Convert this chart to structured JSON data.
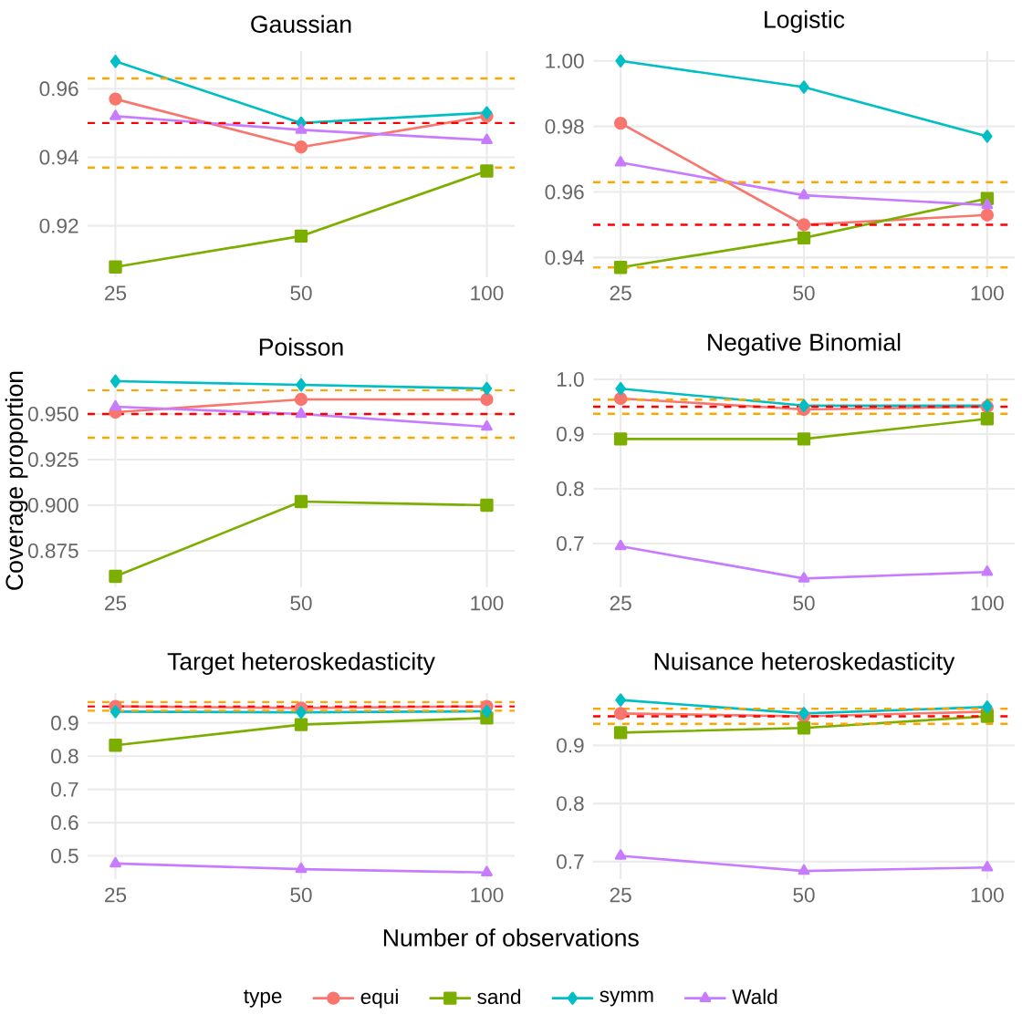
{
  "chart_data": [
    {
      "type": "line",
      "title": "Gaussian",
      "categories": [
        "25",
        "50",
        "100"
      ],
      "ylim": [
        0.905,
        0.971
      ],
      "yticks": [
        0.92,
        0.94,
        0.96
      ],
      "grid": true,
      "series": [
        {
          "color": "#f8766d",
          "marker": "circle",
          "values": [
            0.957,
            0.943,
            0.952
          ]
        },
        {
          "color": "#7cae00",
          "marker": "square",
          "values": [
            0.908,
            0.917,
            0.936
          ]
        },
        {
          "color": "#00bfc4",
          "marker": "diamond",
          "values": [
            0.968,
            0.95,
            0.953
          ]
        },
        {
          "color": "#c77cff",
          "marker": "triangle",
          "values": [
            0.952,
            0.948,
            0.945
          ]
        }
      ],
      "ref_lines": [
        {
          "axis": "y",
          "value": 0.95,
          "color": "#ff0000",
          "line_style": "dashed"
        },
        {
          "axis": "y",
          "value": 0.937,
          "color": "#ffa500",
          "line_style": "dashed"
        },
        {
          "axis": "y",
          "value": 0.963,
          "color": "#ffa500",
          "line_style": "dashed"
        }
      ]
    },
    {
      "type": "line",
      "title": "Logistic",
      "categories": [
        "25",
        "50",
        "100"
      ],
      "ylim": [
        0.934,
        1.003
      ],
      "yticks": [
        {
          "value": 0.94,
          "label": "0.94"
        },
        {
          "value": 0.96,
          "label": "0.96"
        },
        {
          "value": 0.98,
          "label": "0.98"
        },
        {
          "value": 1.0,
          "label": "1.00"
        }
      ],
      "grid": true,
      "series": [
        {
          "color": "#f8766d",
          "marker": "circle",
          "values": [
            0.981,
            0.95,
            0.953
          ]
        },
        {
          "color": "#7cae00",
          "marker": "square",
          "values": [
            0.937,
            0.946,
            0.958
          ]
        },
        {
          "color": "#00bfc4",
          "marker": "diamond",
          "values": [
            1.0,
            0.992,
            0.977
          ]
        },
        {
          "color": "#c77cff",
          "marker": "triangle",
          "values": [
            0.969,
            0.959,
            0.956
          ]
        }
      ],
      "ref_lines": [
        {
          "axis": "y",
          "value": 0.95,
          "color": "#ff0000",
          "line_style": "dashed"
        },
        {
          "axis": "y",
          "value": 0.937,
          "color": "#ffa500",
          "line_style": "dashed"
        },
        {
          "axis": "y",
          "value": 0.963,
          "color": "#ffa500",
          "line_style": "dashed"
        }
      ]
    },
    {
      "type": "line",
      "title": "Poisson",
      "ylabel": "Coverage proportion",
      "categories": [
        "25",
        "50",
        "100"
      ],
      "ylim": [
        0.855,
        0.972
      ],
      "yticks": [
        {
          "value": 0.875,
          "label": "0.875"
        },
        {
          "value": 0.9,
          "label": "0.900"
        },
        {
          "value": 0.925,
          "label": "0.925"
        },
        {
          "value": 0.95,
          "label": "0.950"
        }
      ],
      "grid": true,
      "series": [
        {
          "color": "#f8766d",
          "marker": "circle",
          "values": [
            0.951,
            0.958,
            0.958
          ]
        },
        {
          "color": "#7cae00",
          "marker": "square",
          "values": [
            0.861,
            0.902,
            0.9
          ]
        },
        {
          "color": "#00bfc4",
          "marker": "diamond",
          "values": [
            0.968,
            0.966,
            0.964
          ]
        },
        {
          "color": "#c77cff",
          "marker": "triangle",
          "values": [
            0.954,
            0.95,
            0.943
          ]
        }
      ],
      "ref_lines": [
        {
          "axis": "y",
          "value": 0.95,
          "color": "#ff0000",
          "line_style": "dashed"
        },
        {
          "axis": "y",
          "value": 0.937,
          "color": "#ffa500",
          "line_style": "dashed"
        },
        {
          "axis": "y",
          "value": 0.963,
          "color": "#ffa500",
          "line_style": "dashed"
        }
      ]
    },
    {
      "type": "line",
      "title": "Negative Binomial",
      "categories": [
        "25",
        "50",
        "100"
      ],
      "ylim": [
        0.62,
        1.01
      ],
      "yticks": [
        0.7,
        0.8,
        0.9,
        {
          "value": 1.0,
          "label": "1.0"
        }
      ],
      "grid": true,
      "series": [
        {
          "color": "#f8766d",
          "marker": "circle",
          "values": [
            0.965,
            0.945,
            0.95
          ]
        },
        {
          "color": "#7cae00",
          "marker": "square",
          "values": [
            0.891,
            0.891,
            0.928
          ]
        },
        {
          "color": "#00bfc4",
          "marker": "diamond",
          "values": [
            0.983,
            0.952,
            0.952
          ]
        },
        {
          "color": "#c77cff",
          "marker": "triangle",
          "values": [
            0.695,
            0.636,
            0.648
          ]
        }
      ],
      "ref_lines": [
        {
          "axis": "y",
          "value": 0.95,
          "color": "#ff0000",
          "line_style": "dashed"
        },
        {
          "axis": "y",
          "value": 0.937,
          "color": "#ffa500",
          "line_style": "dashed"
        },
        {
          "axis": "y",
          "value": 0.963,
          "color": "#ffa500",
          "line_style": "dashed"
        }
      ]
    },
    {
      "type": "line",
      "title": "Target heteroskedasticity",
      "xlabel": "Number of observations",
      "legend": "bottom",
      "legend_title": "type",
      "categories": [
        "25",
        "50",
        "100"
      ],
      "ylim": [
        0.43,
        0.99
      ],
      "yticks": [
        0.5,
        0.6,
        0.7,
        0.8,
        0.9
      ],
      "grid": true,
      "series": [
        {
          "name": "equi",
          "color": "#f8766d",
          "marker": "circle",
          "values": [
            0.95,
            0.945,
            0.95
          ]
        },
        {
          "name": "sand",
          "color": "#7cae00",
          "marker": "square",
          "values": [
            0.833,
            0.895,
            0.915
          ]
        },
        {
          "name": "symm",
          "color": "#00bfc4",
          "marker": "diamond",
          "values": [
            0.934,
            0.932,
            0.935
          ]
        },
        {
          "name": "Wald",
          "color": "#c77cff",
          "marker": "triangle",
          "values": [
            0.477,
            0.46,
            0.45
          ]
        }
      ],
      "ref_lines": [
        {
          "axis": "y",
          "value": 0.95,
          "color": "#ff0000",
          "line_style": "dashed"
        },
        {
          "axis": "y",
          "value": 0.937,
          "color": "#ffa500",
          "line_style": "dashed"
        },
        {
          "axis": "y",
          "value": 0.963,
          "color": "#ffa500",
          "line_style": "dashed"
        }
      ]
    },
    {
      "type": "line",
      "title": "Nuisance heteroskedasticity",
      "categories": [
        "25",
        "50",
        "100"
      ],
      "ylim": [
        0.67,
        0.99
      ],
      "yticks": [
        0.7,
        0.8,
        0.9
      ],
      "grid": true,
      "series": [
        {
          "color": "#f8766d",
          "marker": "circle",
          "values": [
            0.955,
            0.95,
            0.958
          ]
        },
        {
          "color": "#7cae00",
          "marker": "square",
          "values": [
            0.922,
            0.93,
            0.95
          ]
        },
        {
          "color": "#00bfc4",
          "marker": "diamond",
          "values": [
            0.978,
            0.955,
            0.966
          ]
        },
        {
          "color": "#c77cff",
          "marker": "triangle",
          "values": [
            0.71,
            0.684,
            0.69
          ]
        }
      ],
      "ref_lines": [
        {
          "axis": "y",
          "value": 0.95,
          "color": "#ff0000",
          "line_style": "dashed"
        },
        {
          "axis": "y",
          "value": 0.937,
          "color": "#ffa500",
          "line_style": "dashed"
        },
        {
          "axis": "y",
          "value": 0.963,
          "color": "#ffa500",
          "line_style": "dashed"
        }
      ]
    }
  ]
}
